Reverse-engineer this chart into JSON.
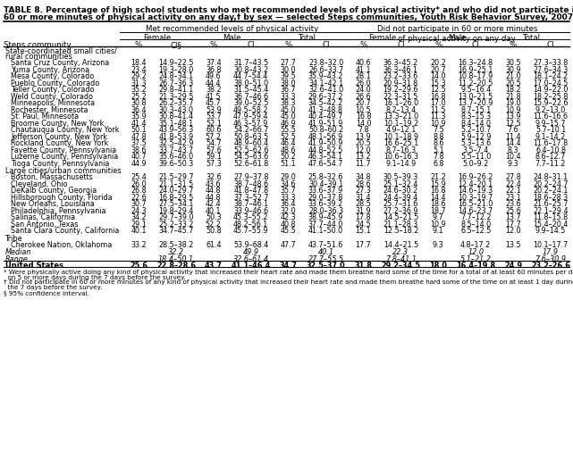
{
  "title_line1": "TABLE 8. Percentage of high school students who met recommended levels of physical activity* and who did not participate in",
  "title_line2": "60 or more minutes of physical activity on any day,† by sex — selected Steps communities, Youth Risk Behavior Survey, 2007",
  "col_group1": "Met recommended levels of physical activity",
  "col_group2": "Did not participate in 60 or more minutes\nof physical activity on any day",
  "sub_groups": [
    "Female",
    "Male",
    "Total",
    "Female",
    "Male",
    "Total"
  ],
  "col_headers": [
    "%",
    "CI§",
    "%",
    "CI",
    "%",
    "CI",
    "%",
    "CI",
    "%",
    "CI",
    "%",
    "CI"
  ],
  "row_label_col": "Steps community",
  "sections": [
    {
      "header1": "State-coordinated small cities/",
      "header2": "rural communities",
      "rows": [
        [
          "Santa Cruz County, Arizona",
          "18.4",
          "14.9–22.5",
          "37.4",
          "31.7–43.5",
          "27.7",
          "23.8–32.0",
          "40.6",
          "36.3–45.2",
          "20.2",
          "16.3–24.8",
          "30.5",
          "27.3–33.8"
        ],
        [
          "Yuma County, Arizona",
          "23.4",
          "19.3–28.0",
          "36.8",
          "30.8–43.2",
          "30.0",
          "26.6–33.7",
          "41.1",
          "36.3–46.1",
          "20.7",
          "16.9–25.1",
          "30.9",
          "27.6–34.3"
        ],
        [
          "Mesa County, Colorado",
          "29.2",
          "24.8–34.1",
          "49.6",
          "44.7–54.4",
          "39.5",
          "35.9–43.2",
          "28.1",
          "23.2–33.6",
          "14.0",
          "10.8–17.9",
          "21.0",
          "18.1–24.2"
        ],
        [
          "Pueblo County, Colorado",
          "31.3",
          "26.7–36.3",
          "44.4",
          "38.0–51.0",
          "38.0",
          "34.1–42.1",
          "26.0",
          "20.9–31.8",
          "15.3",
          "11.2–20.5",
          "20.5",
          "17.0–24.5"
        ],
        [
          "Teller County, Colorado",
          "35.2",
          "29.8–41.1",
          "38.2",
          "31.5–45.4",
          "36.7",
          "32.6–41.0",
          "24.0",
          "19.2–29.6",
          "12.5",
          "9.5–16.4",
          "18.2",
          "14.9–22.0"
        ],
        [
          "Weld County, Colorado",
          "25.2",
          "21.3–29.5",
          "41.5",
          "36.7–46.6",
          "33.3",
          "29.6–37.2",
          "26.6",
          "22.3–31.5",
          "16.8",
          "13.0–21.5",
          "21.8",
          "18.2–25.8"
        ],
        [
          "Minneapolis, Minnesota",
          "30.8",
          "26.2–35.7",
          "45.7",
          "39.0–52.5",
          "38.3",
          "34.5–42.2",
          "20.7",
          "16.1–26.0",
          "17.0",
          "13.7–20.9",
          "19.0",
          "15.9–22.6"
        ],
        [
          "Rochester, Minnesota",
          "36.4",
          "30.3–43.0",
          "53.9",
          "49.5–58.2",
          "45.0",
          "41.3–48.8",
          "10.5",
          "8.2–13.4",
          "11.5",
          "8.7–15.1",
          "10.9",
          "9.2–13.0"
        ],
        [
          "St. Paul, Minnesota",
          "35.9",
          "30.8–41.4",
          "53.7",
          "47.9–59.4",
          "45.0",
          "40.4–49.7",
          "16.8",
          "13.3–21.0",
          "11.3",
          "8.3–15.3",
          "13.9",
          "11.6–16.6"
        ],
        [
          "Broome County, New York",
          "41.4",
          "35.1–48.1",
          "52.1",
          "46.3–57.9",
          "46.9",
          "41.9–51.9",
          "14.0",
          "10.1–19.2",
          "10.9",
          "8.4–14.0",
          "12.5",
          "9.9–15.7"
        ],
        [
          "Chautauqua County, New York",
          "50.1",
          "43.9–56.3",
          "60.6",
          "54.2–66.7",
          "55.5",
          "50.8–60.2",
          "7.8",
          "4.9–12.1",
          "7.5",
          "5.2–10.7",
          "7.6",
          "5.7–10.1"
        ],
        [
          "Jefferson County, New York",
          "47.8",
          "41.8–53.9",
          "57.2",
          "50.8–63.5",
          "52.5",
          "48.1–56.9",
          "13.9",
          "10.1–18.9",
          "8.8",
          "5.9–12.9",
          "11.4",
          "9.1–14.2"
        ],
        [
          "Rockland County, New York",
          "37.5",
          "32.5–42.9",
          "54.7",
          "48.9–60.4",
          "46.4",
          "41.9–50.9",
          "20.5",
          "16.6–25.1",
          "8.6",
          "5.3–13.6",
          "14.4",
          "11.6–17.8"
        ],
        [
          "Fayette County, Pennsylvania",
          "38.6",
          "33.7–43.7",
          "57.6",
          "52.5–62.6",
          "48.6",
          "44.8–52.5",
          "12.0",
          "8.7–16.3",
          "5.1",
          "3.5–7.4",
          "8.3",
          "6.4–10.8"
        ],
        [
          "Luzerne County, Pennsylvania",
          "40.7",
          "35.6–46.0",
          "59.1",
          "54.5–63.6",
          "50.2",
          "46.3–54.1",
          "13.2",
          "10.6–16.3",
          "7.8",
          "5.5–11.0",
          "10.4",
          "8.6–12.7"
        ],
        [
          "Tioga County, Pennsylvania",
          "44.9",
          "39.6–50.3",
          "57.3",
          "52.6–61.8",
          "51.1",
          "47.6–54.7",
          "11.7",
          "9.1–14.9",
          "6.8",
          "5.0–9.2",
          "9.3",
          "7.7–11.2"
        ]
      ]
    },
    {
      "header1": "Large cities/urban communities",
      "header2": "",
      "rows": [
        [
          "Boston, Massachusetts",
          "25.4",
          "21.5–29.7",
          "32.6",
          "27.9–37.8",
          "29.0",
          "25.8–32.6",
          "34.8",
          "30.5–39.3",
          "21.2",
          "16.9–26.2",
          "27.8",
          "24.8–31.1"
        ],
        [
          "Cleveland, Ohio",
          "26.0",
          "21.1–31.5",
          "43.6",
          "38.7–48.6",
          "34.6",
          "30.4–39.1",
          "28.6",
          "25.1–32.4",
          "15.9",
          "12.4–20.1",
          "22.4",
          "20.2–24.7"
        ],
        [
          "DeKalb County, Georgia",
          "26.8",
          "24.0–29.7",
          "44.8",
          "41.8–47.8",
          "35.7",
          "33.6–37.9",
          "27.3",
          "24.6–30.2",
          "16.8",
          "14.6–19.3",
          "22.1",
          "20.2–24.1"
        ],
        [
          "Hillsborough County, Florida",
          "22.6",
          "16.8–29.5",
          "44.8",
          "37.3–52.7",
          "33.3",
          "29.0–37.8",
          "31.4",
          "24.4–39.4",
          "14.4",
          "10.3–19.7",
          "23.1",
          "18.6–28.3"
        ],
        [
          "New Orleans, Louisiana",
          "30.7",
          "27.5–34.1",
          "42.4",
          "38.7–46.1",
          "36.4",
          "33.6–39.2",
          "28.5",
          "25.7–31.6",
          "18.6",
          "16.5–21.0",
          "23.6",
          "21.6–25.7"
        ],
        [
          "Philadelphia, Pennsylvania",
          "24.3",
          "19.8–29.4",
          "40.1",
          "33.9–46.6",
          "32.0",
          "28.0–36.3",
          "31.9",
          "27.2–36.9",
          "18.7",
          "14.6–23.7",
          "25.6",
          "22.1–29.4"
        ],
        [
          "Salinas, California",
          "34.2",
          "29.7–39.0",
          "50.3",
          "45.3–55.2",
          "42.3",
          "38.9–45.9",
          "17.8",
          "14.5–21.5",
          "9.7",
          "7.7–12.2",
          "13.7",
          "11.8–15.8"
        ],
        [
          "San Antonio, Texas",
          "29.1",
          "25.2–33.2",
          "52.2",
          "48.2–56.1",
          "40.8",
          "37.7–44.0",
          "24.5",
          "21.1–28.3",
          "10.9",
          "8.5–14.0",
          "17.7",
          "15.4–20.4"
        ],
        [
          "Santa Clara County, California",
          "40.1",
          "34.7–45.7",
          "50.8",
          "45.7–55.9",
          "45.5",
          "41.1–50.0",
          "15.1",
          "12.5–18.2",
          "9.1",
          "6.5–12.5",
          "12.0",
          "9.9–14.5"
        ]
      ]
    },
    {
      "header1": "Tribe",
      "header2": "",
      "rows": [
        [
          "Cherokee Nation, Oklahoma",
          "33.2",
          "28.5–38.2",
          "61.4",
          "53.9–68.4",
          "47.7",
          "43.7–51.6",
          "17.7",
          "14.4–21.5",
          "9.3",
          "4.8–17.2",
          "13.5",
          "10.1–17.7"
        ]
      ]
    }
  ],
  "summary_rows": [
    {
      "label": "Median",
      "italic": true,
      "values": [
        "",
        "32.2",
        "",
        "49.9",
        "",
        "40.1",
        "",
        "22.3",
        "",
        "12.0",
        "",
        "17.9"
      ]
    },
    {
      "label": "Range",
      "italic": true,
      "values": [
        "",
        "18.4–50.1",
        "",
        "32.6–61.4",
        "",
        "27.7–55.5",
        "",
        "7.8–41.1",
        "",
        "5.1–21.2",
        "",
        "7.6–30.9"
      ]
    },
    {
      "label": "United States",
      "bold": true,
      "values": [
        "25.6",
        "22.8–28.6",
        "43.7",
        "41.1–46.4",
        "34.7",
        "32.5–37.0",
        "31.8",
        "29.2–34.5",
        "18.0",
        "16.4–19.8",
        "24.9",
        "23.2–26.6"
      ]
    }
  ],
  "footnotes": [
    "* Were physically active doing any kind of physical activity that increased their heart rate and made them breathe hard some of the time for a total of at least 60 minutes per day",
    "  on 5 or more days during the 7 days before the survey.",
    "† Did not participate in 60 or more minutes of any kind of physical activity that increased their heart rate and made them breathe hard some of the time on at least 1 day during",
    "  the 7 days before the survey.",
    "§ 95% confidence interval."
  ]
}
